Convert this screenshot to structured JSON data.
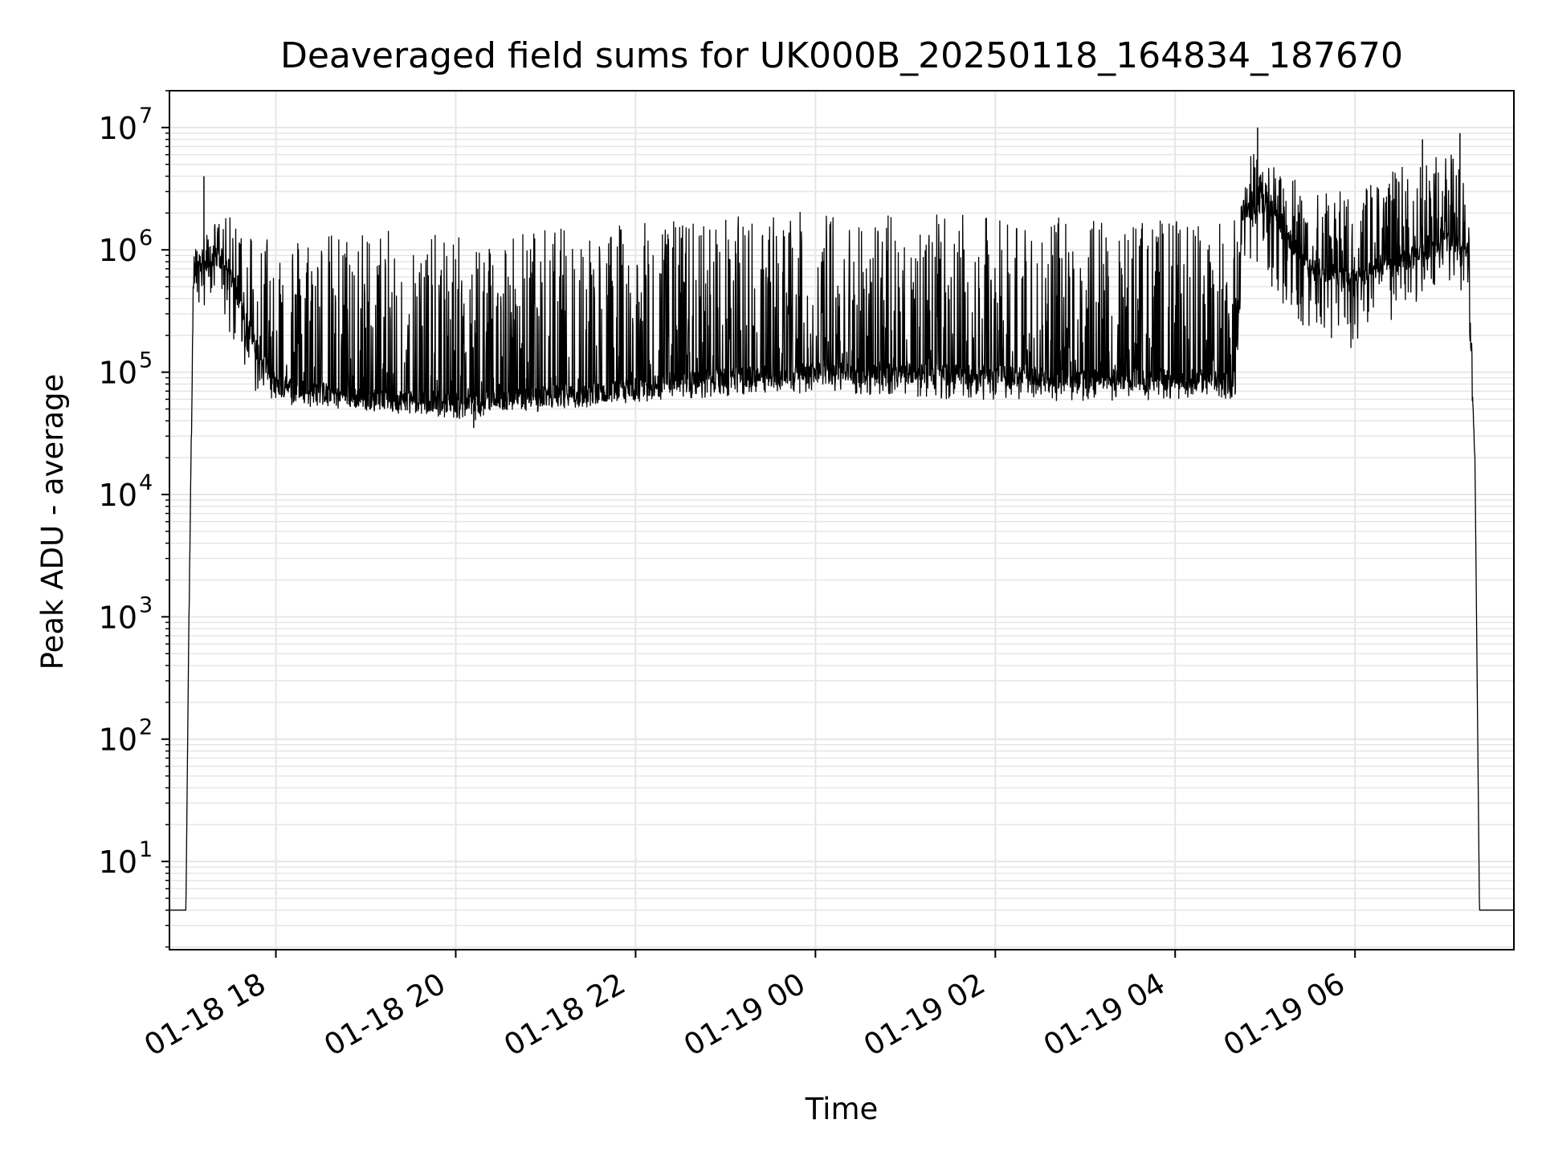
{
  "chart_data": {
    "type": "line",
    "title": "Deaveraged field sums for UK000B_20250118_164834_187670",
    "xlabel": "Time",
    "ylabel": "Peak ADU - average",
    "yscale": "log",
    "ylim": [
      1.9,
      20000000
    ],
    "xlim": [
      "2025-01-18 16:49",
      "2025-01-19 07:46"
    ],
    "grid": true,
    "line_color": "#000000",
    "grid_color": "#e6e6e6",
    "x_ticks": [
      {
        "value": "2025-01-18 18:00",
        "label": "01-18 18"
      },
      {
        "value": "2025-01-18 20:00",
        "label": "01-18 20"
      },
      {
        "value": "2025-01-18 22:00",
        "label": "01-18 22"
      },
      {
        "value": "2025-01-19 00:00",
        "label": "01-19 00"
      },
      {
        "value": "2025-01-19 02:00",
        "label": "01-19 02"
      },
      {
        "value": "2025-01-19 04:00",
        "label": "01-19 04"
      },
      {
        "value": "2025-01-19 06:00",
        "label": "01-19 06"
      }
    ],
    "y_ticks": [
      {
        "value": 10,
        "base": "10",
        "exp": "1"
      },
      {
        "value": 100,
        "base": "10",
        "exp": "2"
      },
      {
        "value": 1000,
        "base": "10",
        "exp": "3"
      },
      {
        "value": 10000,
        "base": "10",
        "exp": "4"
      },
      {
        "value": 100000,
        "base": "10",
        "exp": "5"
      },
      {
        "value": 1000000,
        "base": "10",
        "exp": "6"
      },
      {
        "value": 10000000,
        "base": "10",
        "exp": "7"
      }
    ],
    "series": [
      {
        "x": [
          "2025-01-18 16:49",
          "2025-01-18 17:00",
          "2025-01-18 17:02",
          "2025-01-18 17:05",
          "2025-01-18 17:10",
          "2025-01-18 17:15",
          "2025-01-18 17:20",
          "2025-01-18 17:30",
          "2025-01-18 17:45",
          "2025-01-18 18:00",
          "2025-01-18 18:30",
          "2025-01-18 19:00",
          "2025-01-18 19:30",
          "2025-01-18 20:00",
          "2025-01-18 20:10",
          "2025-01-18 20:30",
          "2025-01-18 21:00",
          "2025-01-18 21:30",
          "2025-01-18 22:00",
          "2025-01-18 22:30",
          "2025-01-18 23:00",
          "2025-01-18 23:30",
          "2025-01-19 00:00",
          "2025-01-19 00:30",
          "2025-01-19 01:00",
          "2025-01-19 01:30",
          "2025-01-19 02:00",
          "2025-01-19 02:30",
          "2025-01-19 03:00",
          "2025-01-19 03:30",
          "2025-01-19 04:00",
          "2025-01-19 04:40",
          "2025-01-19 04:45",
          "2025-01-19 05:00",
          "2025-01-19 05:30",
          "2025-01-19 06:00",
          "2025-01-19 06:30",
          "2025-01-19 07:00",
          "2025-01-19 07:15",
          "2025-01-19 07:20",
          "2025-01-19 07:23",
          "2025-01-19 07:46"
        ],
        "base": [
          4,
          4,
          1000,
          500000,
          800000,
          700000,
          900000,
          600000,
          180000,
          80000,
          70000,
          62000,
          60000,
          58000,
          55000,
          60000,
          65000,
          68000,
          75000,
          85000,
          90000,
          95000,
          100000,
          100000,
          100000,
          98000,
          95000,
          92000,
          90000,
          88000,
          88000,
          90000,
          2000000,
          2500000,
          700000,
          600000,
          800000,
          1200000,
          1000000,
          20000,
          4,
          4
        ],
        "high": [
          4,
          4,
          1000,
          1000000,
          1200000,
          1500000,
          1700000,
          1900000,
          1700000,
          1500000,
          1400000,
          1500000,
          1400000,
          1300000,
          1400000,
          1500000,
          1550000,
          1600000,
          1650000,
          1800000,
          1900000,
          2000000,
          2100000,
          2000000,
          2000000,
          1950000,
          1900000,
          1850000,
          1850000,
          1800000,
          1800000,
          1800000,
          6000000,
          7000000,
          3000000,
          3000000,
          5000000,
          7000000,
          4000000,
          20000,
          4,
          4
        ],
        "low": [
          4,
          4,
          1000,
          300000,
          400000,
          300000,
          400000,
          200000,
          70000,
          55000,
          50000,
          48000,
          45000,
          42000,
          38000,
          45000,
          48000,
          50000,
          55000,
          60000,
          62000,
          65000,
          68000,
          65000,
          62000,
          60000,
          58000,
          58000,
          58000,
          58000,
          60000,
          60000,
          800000,
          500000,
          200000,
          150000,
          300000,
          500000,
          400000,
          20000,
          4,
          4
        ],
        "peaks": [
          {
            "x": "2025-01-18 17:12",
            "y": 4000000
          },
          {
            "x": "2025-01-18 20:12",
            "y": 35000
          },
          {
            "x": "2025-01-19 04:55",
            "y": 10000000
          },
          {
            "x": "2025-01-19 06:45",
            "y": 8000000
          },
          {
            "x": "2025-01-19 07:10",
            "y": 9000000
          }
        ]
      }
    ]
  }
}
